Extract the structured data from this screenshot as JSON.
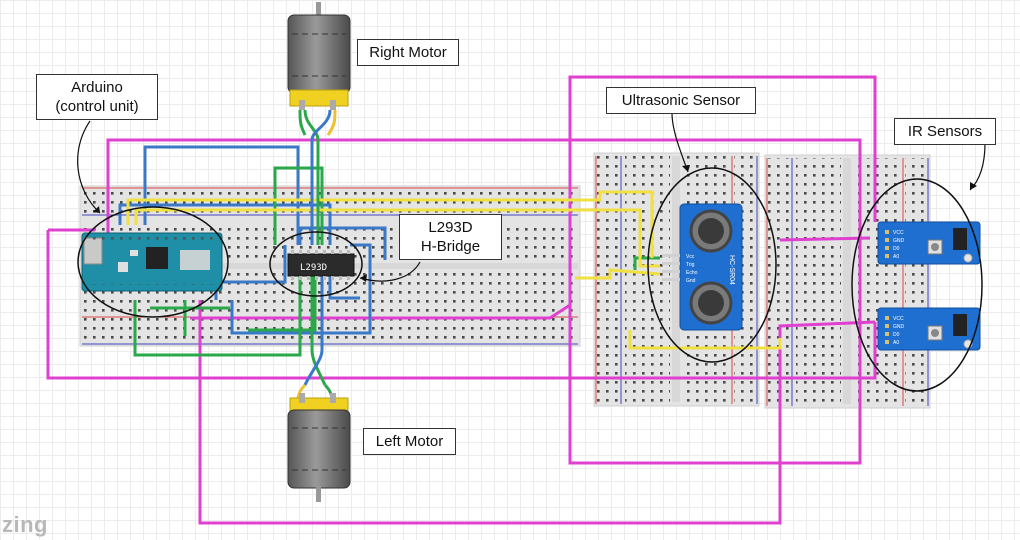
{
  "labels": {
    "right_motor": "Right Motor",
    "left_motor": "Left Motor",
    "ultrasonic": "Ultrasonic Sensor",
    "ir_sensors": "IR Sensors",
    "arduino_line1": "Arduino",
    "arduino_line2": "(control unit)",
    "hbridge_line1": "L293D",
    "hbridge_line2": "H-Bridge"
  },
  "chip": {
    "marking": "L293D"
  },
  "ultrasonic_module": {
    "marking": "HC-SR04",
    "pins": [
      "Vcc",
      "Trig",
      "Echo",
      "Gnd"
    ]
  },
  "ir_module": {
    "pins": [
      "VCC",
      "GND",
      "D0",
      "A0"
    ]
  },
  "watermark": "zing",
  "colors": {
    "power_wire": "#e040d0",
    "signal_blue": "#3a78c8",
    "signal_yellow": "#f0e040",
    "ground_green": "#2aa84a",
    "arduino_board": "#1f8fa8",
    "sensor_board": "#1f6fd0",
    "motor_body": "#6a6a6a",
    "motor_cap": "#f0d020"
  }
}
